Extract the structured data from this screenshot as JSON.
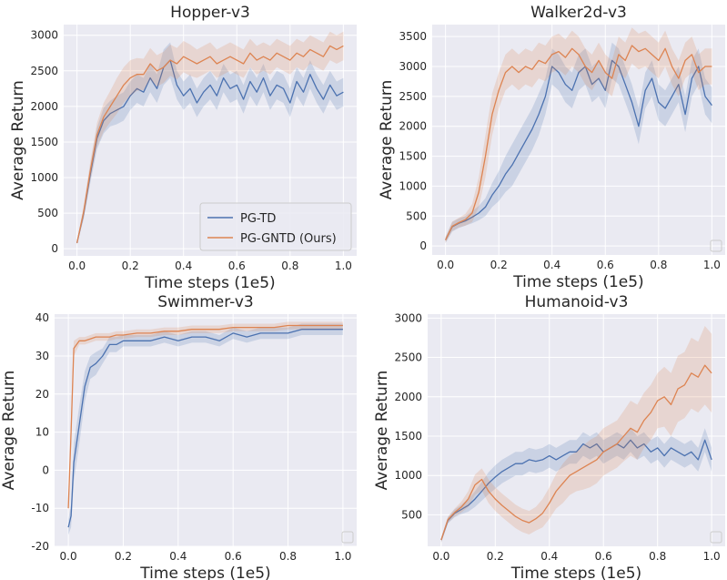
{
  "colors": {
    "pg_td": "#4c72b0",
    "pg_gntd": "#dd8452",
    "plot_bg": "#eaeaf2",
    "grid": "#ffffff",
    "text": "#262626"
  },
  "chart_data": [
    {
      "type": "line",
      "title": "Hopper-v3",
      "xlabel": "Time steps (1e5)",
      "ylabel": "Average Return",
      "xlim": [
        -0.05,
        1.05
      ],
      "ylim": [
        -100,
        3150
      ],
      "xticks": [
        0.0,
        0.2,
        0.4,
        0.6,
        0.8,
        1.0
      ],
      "yticks": [
        0,
        500,
        1000,
        1500,
        2000,
        2500,
        3000
      ],
      "legend": "lower-right",
      "grid": true,
      "x": [
        0,
        0.025,
        0.05,
        0.075,
        0.1,
        0.125,
        0.15,
        0.175,
        0.2,
        0.225,
        0.25,
        0.275,
        0.3,
        0.325,
        0.35,
        0.375,
        0.4,
        0.425,
        0.45,
        0.475,
        0.5,
        0.525,
        0.55,
        0.575,
        0.6,
        0.625,
        0.65,
        0.675,
        0.7,
        0.725,
        0.75,
        0.775,
        0.8,
        0.825,
        0.85,
        0.875,
        0.9,
        0.925,
        0.95,
        0.975,
        1.0
      ],
      "series": [
        {
          "name": "PG-TD",
          "color_key": "pg_td",
          "values": [
            80,
            500,
            1050,
            1550,
            1800,
            1900,
            1950,
            2000,
            2150,
            2250,
            2200,
            2400,
            2250,
            2550,
            2650,
            2300,
            2150,
            2250,
            2050,
            2200,
            2300,
            2150,
            2400,
            2250,
            2300,
            2100,
            2350,
            2200,
            2400,
            2150,
            2300,
            2250,
            2050,
            2350,
            2200,
            2450,
            2250,
            2100,
            2300,
            2150,
            2200
          ],
          "spread": [
            20,
            80,
            120,
            150,
            180,
            180,
            200,
            200,
            200,
            200,
            200,
            200,
            200,
            250,
            250,
            200,
            200,
            200,
            200,
            200,
            200,
            200,
            200,
            200,
            200,
            200,
            200,
            200,
            200,
            200,
            200,
            200,
            200,
            200,
            200,
            200,
            200,
            200,
            200,
            200,
            200
          ]
        },
        {
          "name": "PG-GNTD (Ours)",
          "color_key": "pg_gntd",
          "values": [
            80,
            520,
            1100,
            1600,
            1850,
            2000,
            2150,
            2300,
            2400,
            2450,
            2450,
            2600,
            2500,
            2550,
            2650,
            2600,
            2700,
            2650,
            2600,
            2650,
            2700,
            2600,
            2650,
            2700,
            2650,
            2600,
            2750,
            2650,
            2700,
            2650,
            2750,
            2700,
            2650,
            2750,
            2700,
            2800,
            2750,
            2700,
            2850,
            2800,
            2850
          ],
          "spread": [
            20,
            90,
            130,
            170,
            200,
            220,
            250,
            250,
            250,
            230,
            220,
            220,
            220,
            220,
            220,
            220,
            220,
            220,
            200,
            200,
            200,
            200,
            200,
            200,
            200,
            200,
            200,
            200,
            200,
            200,
            200,
            200,
            200,
            200,
            200,
            200,
            200,
            200,
            200,
            200,
            200
          ]
        }
      ]
    },
    {
      "type": "line",
      "title": "Walker2d-v3",
      "xlabel": "Time steps (1e5)",
      "ylabel": "Average Return",
      "xlim": [
        -0.05,
        1.05
      ],
      "ylim": [
        -150,
        3700
      ],
      "xticks": [
        0.0,
        0.2,
        0.4,
        0.6,
        0.8,
        1.0
      ],
      "yticks": [
        0,
        500,
        1000,
        1500,
        2000,
        2500,
        3000,
        3500
      ],
      "legend": "lower-right",
      "grid": true,
      "x": [
        0,
        0.025,
        0.05,
        0.075,
        0.1,
        0.125,
        0.15,
        0.175,
        0.2,
        0.225,
        0.25,
        0.275,
        0.3,
        0.325,
        0.35,
        0.375,
        0.4,
        0.425,
        0.45,
        0.475,
        0.5,
        0.525,
        0.55,
        0.575,
        0.6,
        0.625,
        0.65,
        0.675,
        0.7,
        0.725,
        0.75,
        0.775,
        0.8,
        0.825,
        0.85,
        0.875,
        0.9,
        0.925,
        0.95,
        0.975,
        1.0
      ],
      "series": [
        {
          "name": "PG-TD",
          "color_key": "pg_td",
          "values": [
            100,
            320,
            380,
            420,
            480,
            550,
            650,
            850,
            1000,
            1200,
            1350,
            1550,
            1750,
            1950,
            2200,
            2500,
            3000,
            2900,
            2700,
            2600,
            2900,
            3000,
            2700,
            2800,
            2600,
            3100,
            3000,
            2700,
            2400,
            2000,
            2600,
            2800,
            2400,
            2300,
            2500,
            2700,
            2200,
            2800,
            3000,
            2500,
            2350
          ],
          "spread": [
            50,
            80,
            80,
            80,
            100,
            120,
            150,
            200,
            250,
            300,
            350,
            350,
            350,
            350,
            350,
            300,
            300,
            300,
            300,
            300,
            300,
            300,
            300,
            300,
            300,
            300,
            300,
            300,
            300,
            300,
            300,
            300,
            300,
            300,
            300,
            300,
            300,
            300,
            300,
            300,
            300
          ]
        },
        {
          "name": "PG-GNTD (Ours)",
          "color_key": "pg_gntd",
          "values": [
            100,
            330,
            390,
            440,
            550,
            900,
            1500,
            2200,
            2600,
            2900,
            3000,
            2900,
            3000,
            2950,
            3100,
            3050,
            3200,
            3250,
            3150,
            3300,
            3200,
            3000,
            2900,
            3100,
            2900,
            2800,
            3200,
            3100,
            3350,
            3250,
            3300,
            3200,
            3100,
            3300,
            3000,
            2800,
            3100,
            3200,
            2900,
            3000,
            3000
          ],
          "spread": [
            50,
            80,
            80,
            100,
            150,
            250,
            350,
            350,
            300,
            300,
            300,
            300,
            300,
            300,
            300,
            300,
            300,
            300,
            300,
            300,
            300,
            300,
            300,
            300,
            300,
            300,
            300,
            300,
            300,
            300,
            300,
            300,
            300,
            300,
            300,
            300,
            300,
            300,
            300,
            300,
            300
          ]
        }
      ]
    },
    {
      "type": "line",
      "title": "Swimmer-v3",
      "xlabel": "Time steps (1e5)",
      "ylabel": "Average Return",
      "xlim": [
        -0.05,
        1.05
      ],
      "ylim": [
        -20,
        41
      ],
      "xticks": [
        0.0,
        0.2,
        0.4,
        0.6,
        0.8,
        1.0
      ],
      "yticks": [
        -20,
        -10,
        0,
        10,
        20,
        30,
        40
      ],
      "legend": "lower-right",
      "grid": true,
      "x": [
        0,
        0.01,
        0.02,
        0.04,
        0.06,
        0.08,
        0.1,
        0.125,
        0.15,
        0.175,
        0.2,
        0.25,
        0.3,
        0.35,
        0.4,
        0.45,
        0.5,
        0.55,
        0.6,
        0.65,
        0.7,
        0.75,
        0.8,
        0.85,
        0.9,
        0.95,
        1.0
      ],
      "series": [
        {
          "name": "PG-TD",
          "color_key": "pg_td",
          "values": [
            -15,
            -12,
            2,
            12,
            22,
            27,
            28,
            30,
            33,
            33,
            34,
            34,
            34,
            35,
            34,
            35,
            35,
            34,
            36,
            35,
            36,
            36,
            36,
            37,
            37,
            37,
            37
          ],
          "spread": [
            2,
            3,
            5,
            5,
            4,
            3,
            3,
            2,
            2,
            2,
            1.5,
            1.5,
            1.5,
            1.5,
            1.5,
            1.5,
            1.5,
            1.5,
            1.5,
            1.5,
            1.5,
            1.5,
            1.5,
            1.5,
            1.5,
            1.5,
            1.5
          ]
        },
        {
          "name": "PG-GNTD (Ours)",
          "color_key": "pg_gntd",
          "values": [
            -10,
            10,
            32,
            34,
            34,
            34.5,
            35,
            35,
            35,
            35.5,
            35.5,
            36,
            36,
            36.5,
            36.5,
            37,
            37,
            37,
            37.5,
            37.5,
            37.5,
            37.5,
            38,
            38,
            38,
            38,
            38
          ],
          "spread": [
            2,
            4,
            2,
            1,
            1,
            1,
            1,
            1,
            1,
            1,
            1,
            1,
            1,
            1,
            1,
            1,
            1,
            1,
            1,
            1,
            1,
            1,
            1,
            1,
            1,
            1,
            1
          ]
        }
      ]
    },
    {
      "type": "line",
      "title": "Humanoid-v3",
      "xlabel": "Time steps (1e5)",
      "ylabel": "Average Return",
      "xlim": [
        -0.05,
        1.05
      ],
      "ylim": [
        100,
        3050
      ],
      "xticks": [
        0.0,
        0.2,
        0.4,
        0.6,
        0.8,
        1.0
      ],
      "yticks": [
        500,
        1000,
        1500,
        2000,
        2500,
        3000
      ],
      "legend": "lower-right",
      "grid": true,
      "x": [
        0,
        0.025,
        0.05,
        0.075,
        0.1,
        0.125,
        0.15,
        0.175,
        0.2,
        0.225,
        0.25,
        0.275,
        0.3,
        0.325,
        0.35,
        0.375,
        0.4,
        0.425,
        0.45,
        0.475,
        0.5,
        0.525,
        0.55,
        0.575,
        0.6,
        0.625,
        0.65,
        0.675,
        0.7,
        0.725,
        0.75,
        0.775,
        0.8,
        0.825,
        0.85,
        0.875,
        0.9,
        0.925,
        0.95,
        0.975,
        1.0
      ],
      "series": [
        {
          "name": "PG-TD",
          "color_key": "pg_td",
          "values": [
            180,
            430,
            520,
            570,
            620,
            700,
            800,
            900,
            980,
            1050,
            1100,
            1150,
            1150,
            1200,
            1180,
            1200,
            1250,
            1200,
            1250,
            1300,
            1300,
            1400,
            1350,
            1400,
            1300,
            1350,
            1400,
            1350,
            1450,
            1350,
            1400,
            1300,
            1350,
            1250,
            1350,
            1300,
            1250,
            1300,
            1200,
            1450,
            1200
          ],
          "spread": [
            30,
            40,
            50,
            60,
            80,
            100,
            120,
            140,
            150,
            150,
            150,
            150,
            150,
            150,
            150,
            150,
            150,
            150,
            150,
            150,
            150,
            150,
            150,
            150,
            150,
            150,
            150,
            150,
            150,
            150,
            150,
            150,
            150,
            150,
            150,
            150,
            150,
            150,
            150,
            150,
            150
          ]
        },
        {
          "name": "PG-GNTD (Ours)",
          "color_key": "pg_gntd",
          "values": [
            180,
            440,
            530,
            600,
            700,
            880,
            950,
            800,
            700,
            620,
            550,
            480,
            430,
            400,
            450,
            520,
            650,
            800,
            900,
            1000,
            1050,
            1100,
            1150,
            1200,
            1300,
            1350,
            1400,
            1500,
            1600,
            1550,
            1700,
            1800,
            1950,
            2000,
            1900,
            2100,
            2150,
            2300,
            2250,
            2400,
            2300
          ],
          "spread": [
            30,
            40,
            50,
            70,
            100,
            130,
            140,
            150,
            150,
            150,
            150,
            150,
            150,
            150,
            150,
            180,
            200,
            220,
            250,
            250,
            250,
            280,
            300,
            300,
            300,
            300,
            300,
            320,
            350,
            350,
            350,
            350,
            350,
            380,
            400,
            420,
            420,
            450,
            450,
            500,
            500
          ]
        }
      ]
    }
  ]
}
